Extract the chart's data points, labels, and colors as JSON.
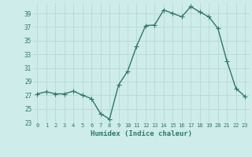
{
  "x": [
    0,
    1,
    2,
    3,
    4,
    5,
    6,
    7,
    8,
    9,
    10,
    11,
    12,
    13,
    14,
    15,
    16,
    17,
    18,
    19,
    20,
    21,
    22,
    23
  ],
  "y": [
    27.2,
    27.5,
    27.2,
    27.2,
    27.6,
    27.0,
    26.5,
    24.3,
    23.5,
    28.5,
    30.5,
    34.2,
    37.2,
    37.3,
    39.5,
    39.0,
    38.5,
    40.0,
    39.2,
    38.5,
    36.8,
    32.0,
    28.0,
    26.8
  ],
  "xlabel": "Humidex (Indice chaleur)",
  "ylim": [
    23,
    40
  ],
  "xlim": [
    -0.5,
    23.5
  ],
  "yticks": [
    23,
    25,
    27,
    29,
    31,
    33,
    35,
    37,
    39
  ],
  "xticks": [
    0,
    1,
    2,
    3,
    4,
    5,
    6,
    7,
    8,
    9,
    10,
    11,
    12,
    13,
    14,
    15,
    16,
    17,
    18,
    19,
    20,
    21,
    22,
    23
  ],
  "line_color": "#2d7a68",
  "marker_color": "#2d7a68",
  "bg_color": "#cdecea",
  "grid_color": "#b8d8d5",
  "tick_label_color": "#2d7a68",
  "xlabel_color": "#2d7a68",
  "marker": "P",
  "marker_size": 2.5,
  "line_width": 1.0
}
